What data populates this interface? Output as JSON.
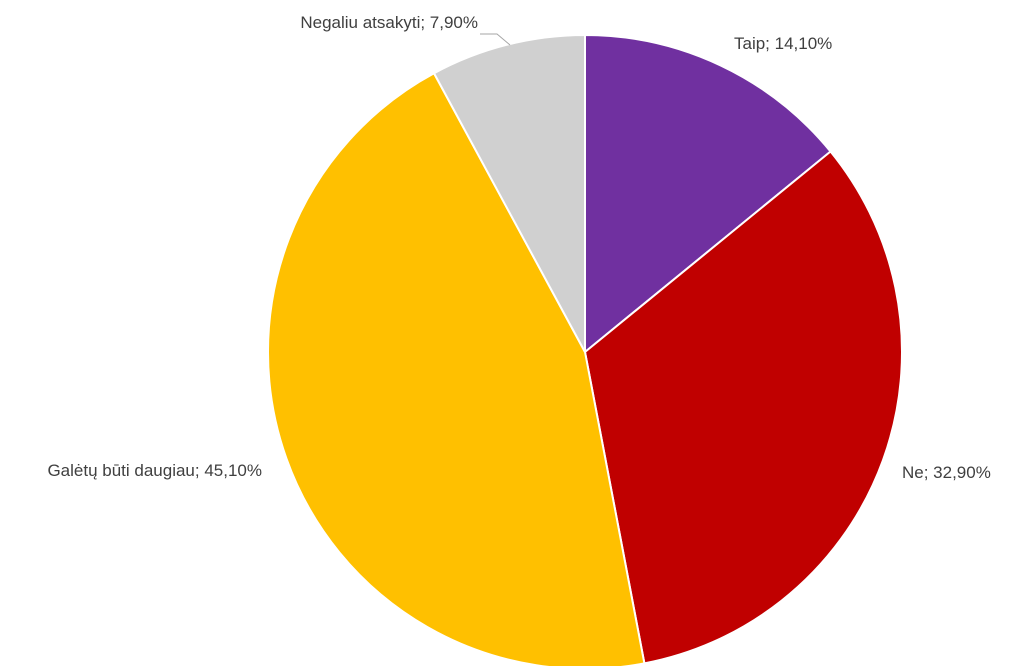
{
  "chart_data": {
    "type": "pie",
    "title": "",
    "legend": "none",
    "slices": [
      {
        "label": "Taip",
        "value": 14.1,
        "display": "Taip; 14,10%",
        "color": "#7030A0"
      },
      {
        "label": "Ne",
        "value": 32.9,
        "display": "Ne; 32,90%",
        "color": "#C00000"
      },
      {
        "label": "Galėtų būti daugiau",
        "value": 45.1,
        "display": "Galėtų būti daugiau; 45,10%",
        "color": "#FFC000"
      },
      {
        "label": "Negaliu atsakyti",
        "value": 7.9,
        "display": "Negaliu atsakyti; 7,90%",
        "color": "#D0D0D0"
      }
    ]
  }
}
